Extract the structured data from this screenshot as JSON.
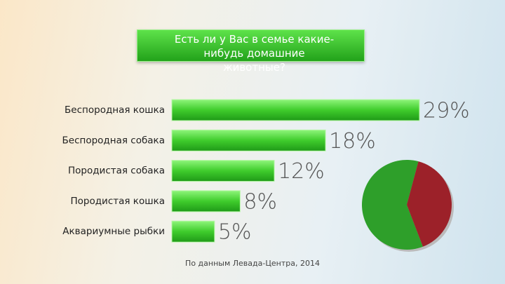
{
  "chart_data": [
    {
      "type": "bar",
      "title": "Есть ли у Вас в семье какие-нибудь домашние животные?",
      "categories": [
        "Беспородная кошка",
        "Беспородная собака",
        "Породистая собака",
        "Породистая кошка",
        "Аквариумные рыбки"
      ],
      "values": [
        29,
        18,
        12,
        8,
        5
      ],
      "value_labels": [
        "29%",
        "18%",
        "12%",
        "8%",
        "5%"
      ],
      "color": "#3fcc2c",
      "source": "По данным Левада-Центра, 2014"
    },
    {
      "type": "pie",
      "values": [
        60,
        40
      ],
      "colors": [
        "#2e9f2a",
        "#9c2129"
      ]
    }
  ]
}
